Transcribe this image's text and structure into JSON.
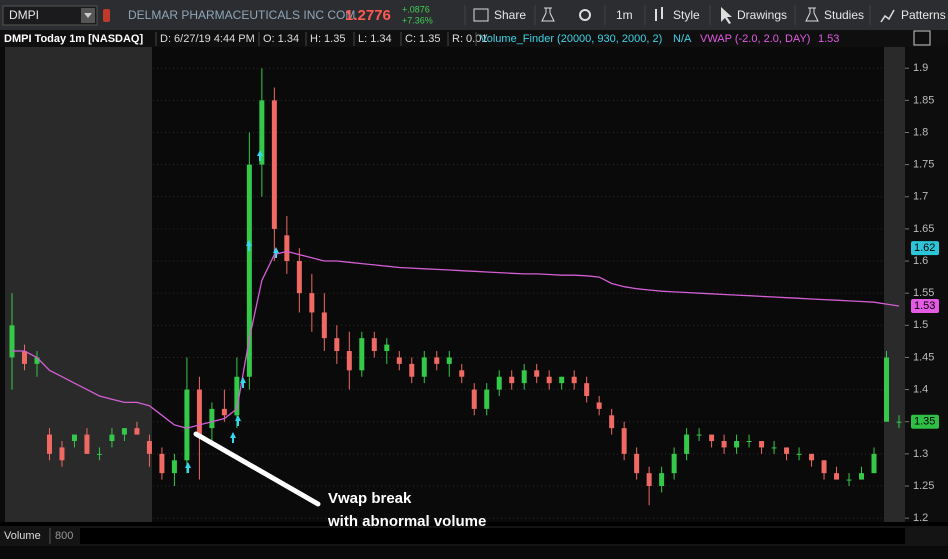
{
  "toolbar": {
    "symbol": "DMPI",
    "company": "DELMAR PHARMACEUTICALS INC COM",
    "price": "1.2776",
    "change": "+.0876",
    "change_pct": "+7.36%",
    "buttons": [
      "Share",
      "1m",
      "Style",
      "Drawings",
      "Studies",
      "Patterns"
    ]
  },
  "info_bar": [
    "DMPI Today 1m [NASDAQ]",
    "D: 6/27/19 4:44 PM",
    "O: 1.34",
    "H: 1.35",
    "L: 1.34",
    "C: 1.35",
    "R: 0.01",
    "Volume_Finder (20000, 930, 2000, 2)",
    "N/A",
    "VWAP (-2.0, 2.0, DAY)",
    "1.53"
  ],
  "chart_data": {
    "type": "candlestick",
    "open": [
      1.45,
      1.46,
      1.44,
      1.33,
      1.31,
      1.32,
      1.33,
      1.3,
      1.32,
      1.33,
      1.34,
      1.32,
      1.3,
      1.27,
      1.29,
      1.4,
      1.34,
      1.37,
      1.36,
      1.42,
      1.75,
      1.85,
      1.64,
      1.6,
      1.55,
      1.52,
      1.48,
      1.46,
      1.43,
      1.48,
      1.46,
      1.45,
      1.44,
      1.42,
      1.45,
      1.44,
      1.43,
      1.4,
      1.37,
      1.4,
      1.42,
      1.41,
      1.43,
      1.42,
      1.41,
      1.42,
      1.41,
      1.38,
      1.36,
      1.34,
      1.3,
      1.27,
      1.25,
      1.27,
      1.3,
      1.33,
      1.33,
      1.32,
      1.31,
      1.32,
      1.32,
      1.31,
      1.31,
      1.3,
      1.3,
      1.29,
      1.27,
      1.26,
      1.26,
      1.27,
      1.35,
      1.35
    ],
    "high": [
      1.55,
      1.47,
      1.46,
      1.34,
      1.32,
      1.33,
      1.34,
      1.31,
      1.34,
      1.34,
      1.35,
      1.33,
      1.31,
      1.3,
      1.45,
      1.42,
      1.38,
      1.4,
      1.45,
      1.8,
      1.9,
      1.87,
      1.67,
      1.62,
      1.58,
      1.55,
      1.5,
      1.49,
      1.49,
      1.49,
      1.48,
      1.46,
      1.45,
      1.46,
      1.46,
      1.46,
      1.44,
      1.41,
      1.41,
      1.43,
      1.43,
      1.44,
      1.44,
      1.43,
      1.42,
      1.43,
      1.42,
      1.39,
      1.37,
      1.35,
      1.31,
      1.28,
      1.28,
      1.31,
      1.34,
      1.34,
      1.33,
      1.33,
      1.33,
      1.33,
      1.32,
      1.32,
      1.31,
      1.31,
      1.3,
      1.29,
      1.28,
      1.27,
      1.28,
      1.31,
      1.46,
      1.36
    ],
    "low": [
      1.4,
      1.43,
      1.42,
      1.29,
      1.28,
      1.31,
      1.3,
      1.29,
      1.31,
      1.32,
      1.33,
      1.28,
      1.26,
      1.25,
      1.27,
      1.26,
      1.32,
      1.35,
      1.34,
      1.4,
      1.7,
      1.6,
      1.58,
      1.52,
      1.49,
      1.46,
      1.44,
      1.4,
      1.42,
      1.45,
      1.44,
      1.43,
      1.41,
      1.41,
      1.43,
      1.42,
      1.41,
      1.36,
      1.36,
      1.39,
      1.4,
      1.4,
      1.41,
      1.4,
      1.4,
      1.4,
      1.38,
      1.36,
      1.33,
      1.29,
      1.26,
      1.22,
      1.24,
      1.26,
      1.29,
      1.32,
      1.31,
      1.3,
      1.3,
      1.31,
      1.3,
      1.3,
      1.29,
      1.29,
      1.28,
      1.26,
      1.26,
      1.25,
      1.26,
      1.27,
      1.35,
      1.34
    ],
    "close": [
      1.5,
      1.44,
      1.45,
      1.3,
      1.29,
      1.33,
      1.3,
      1.3,
      1.33,
      1.34,
      1.33,
      1.3,
      1.27,
      1.29,
      1.4,
      1.33,
      1.37,
      1.36,
      1.42,
      1.75,
      1.85,
      1.65,
      1.6,
      1.55,
      1.52,
      1.48,
      1.46,
      1.43,
      1.48,
      1.46,
      1.47,
      1.44,
      1.42,
      1.45,
      1.44,
      1.45,
      1.42,
      1.37,
      1.4,
      1.42,
      1.41,
      1.43,
      1.42,
      1.41,
      1.42,
      1.41,
      1.39,
      1.37,
      1.34,
      1.3,
      1.27,
      1.25,
      1.27,
      1.3,
      1.33,
      1.33,
      1.32,
      1.31,
      1.32,
      1.32,
      1.31,
      1.31,
      1.3,
      1.3,
      1.29,
      1.27,
      1.26,
      1.26,
      1.27,
      1.3,
      1.45,
      1.35
    ],
    "up_color": "#35c94a",
    "down_color": "#f06a63",
    "vwap": {
      "color": "#d45ed4",
      "values": [
        1.46,
        1.46,
        1.45,
        1.43,
        1.42,
        1.41,
        1.4,
        1.39,
        1.385,
        1.38,
        1.38,
        1.375,
        1.36,
        1.345,
        1.34,
        1.345,
        1.35,
        1.355,
        1.37,
        1.48,
        1.57,
        1.61,
        1.615,
        1.61,
        1.605,
        1.6,
        1.6,
        1.598,
        1.596,
        1.594,
        1.592,
        1.59,
        1.589,
        1.588,
        1.587,
        1.586,
        1.585,
        1.584,
        1.583,
        1.582,
        1.581,
        1.58,
        1.58,
        1.579,
        1.578,
        1.578,
        1.577,
        1.575,
        1.565,
        1.56,
        1.557,
        1.555,
        1.553,
        1.552,
        1.551,
        1.55,
        1.549,
        1.548,
        1.547,
        1.546,
        1.545,
        1.544,
        1.543,
        1.542,
        1.541,
        1.54,
        1.539,
        1.538,
        1.537,
        1.536,
        1.533,
        1.53
      ]
    },
    "ylim": [
      1.194,
      1.933
    ],
    "yticks": [
      1.2,
      1.25,
      1.3,
      1.35,
      1.4,
      1.45,
      1.5,
      1.55,
      1.6,
      1.65,
      1.7,
      1.75,
      1.8,
      1.85,
      1.9
    ],
    "grid": true,
    "price_markers": [
      {
        "value": 1.62,
        "color": "#2cc6d8"
      },
      {
        "value": 1.53,
        "color": "#e35be3"
      },
      {
        "value": 1.35,
        "color": "#2fbf45"
      }
    ],
    "annotation": [
      "Vwap break",
      "with abnormal volume"
    ],
    "volume_panel": {
      "label": "Volume",
      "value": 800
    }
  }
}
